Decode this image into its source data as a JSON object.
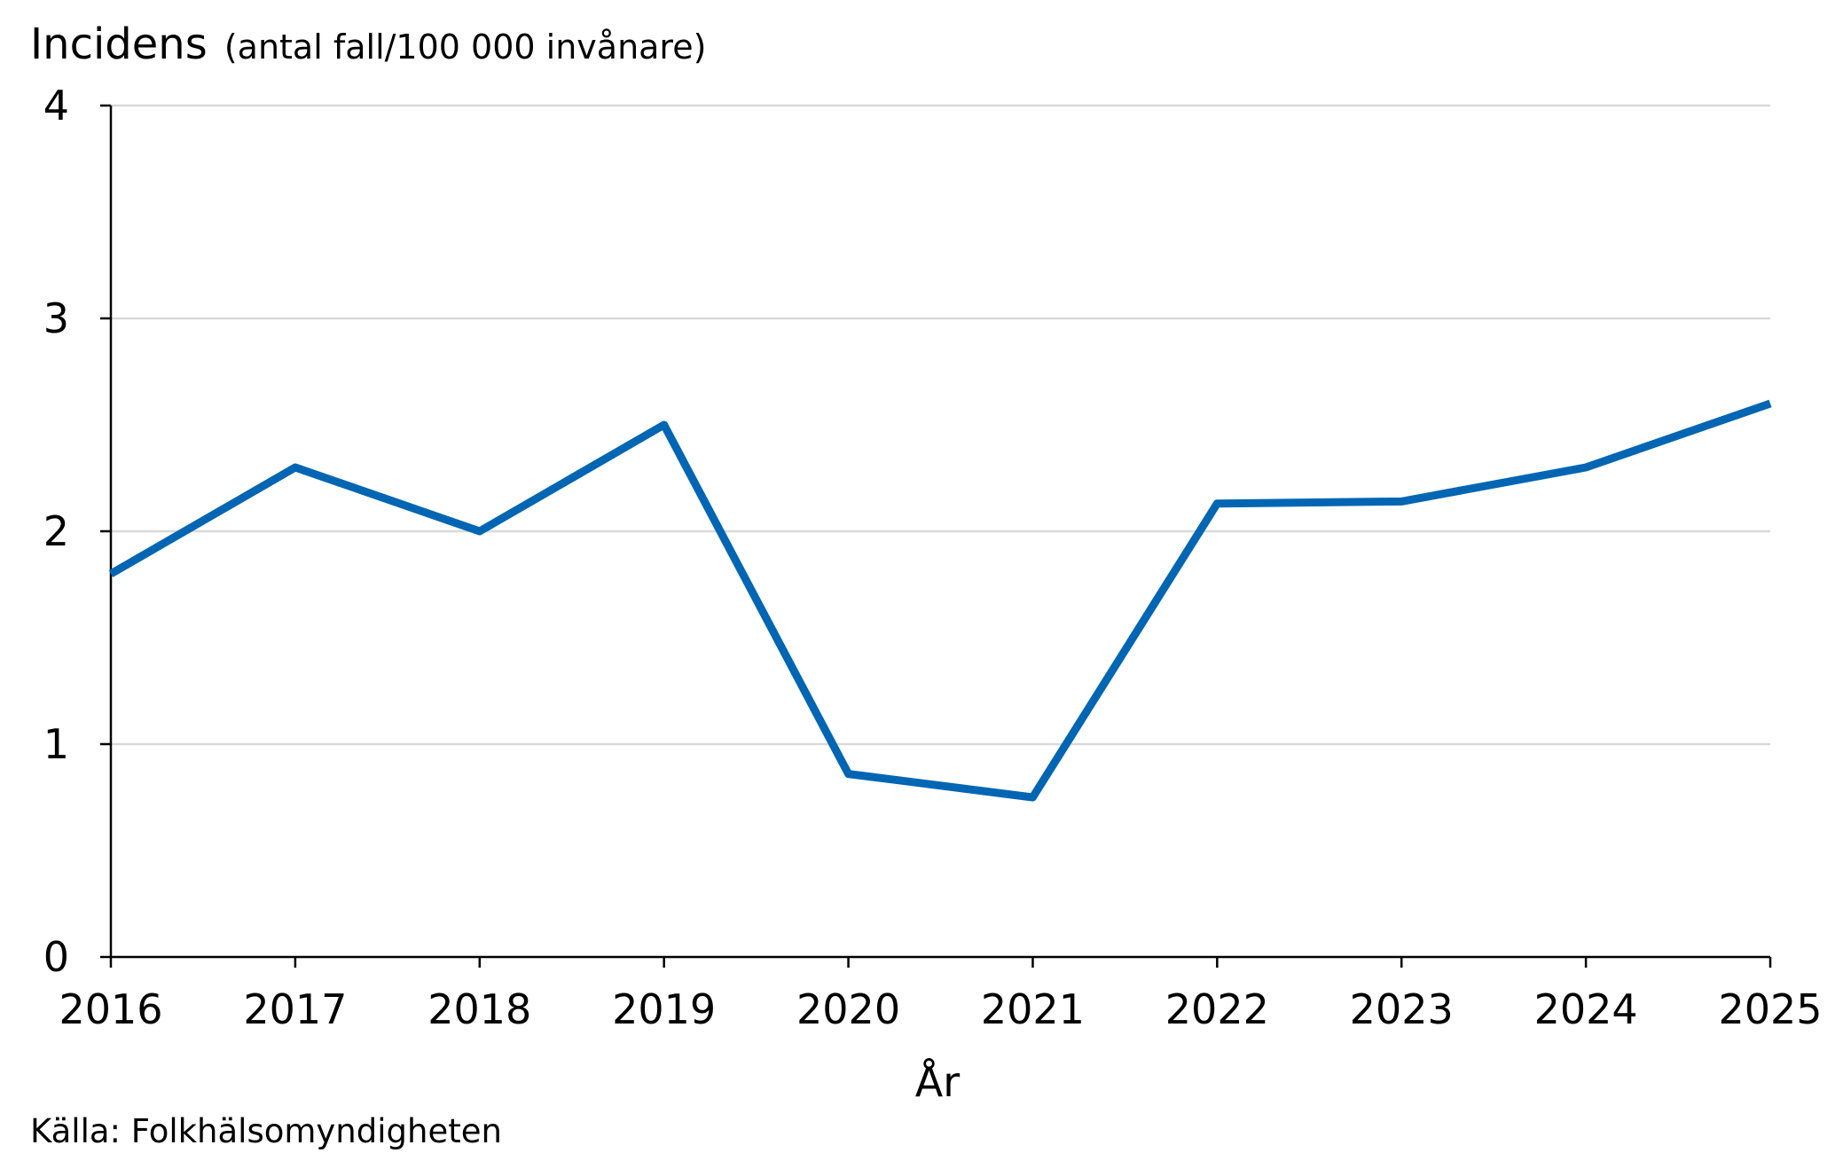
{
  "chart_data": {
    "type": "line",
    "ylabel": "Incidens",
    "ylabel_unit": "(antal fall/100 000 invånare)",
    "xlabel": "År",
    "categories": [
      "2016",
      "2017",
      "2018",
      "2019",
      "2020",
      "2021",
      "2022",
      "2023",
      "2024",
      "2025"
    ],
    "series": [
      {
        "values": [
          1.8,
          2.3,
          2.0,
          2.5,
          0.86,
          0.75,
          2.13,
          2.14,
          2.3,
          2.6
        ]
      }
    ],
    "yticks": [
      "0",
      "1",
      "2",
      "3",
      "4"
    ],
    "ylim": [
      0,
      4
    ],
    "grid": true,
    "line_color": "#0066B3",
    "grid_color": "#D9D9D9"
  },
  "source": "Källa: Folkhälsomyndigheten"
}
